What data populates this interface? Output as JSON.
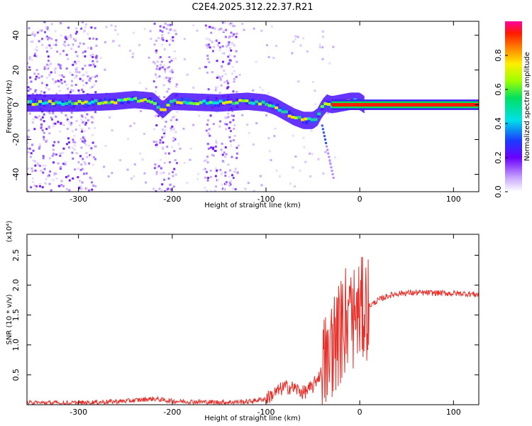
{
  "title": "C2E4.2025.312.22.37.R21",
  "chart_data": [
    {
      "type": "heatmap",
      "xlabel": "Height of straight line (km)",
      "ylabel": "Frequency (Hz)",
      "xlim": [
        -355,
        127
      ],
      "ylim": [
        -50,
        48
      ],
      "xticks": [
        -300,
        -200,
        -100,
        0,
        100
      ],
      "yticks": [
        -40,
        -20,
        0,
        20,
        40
      ],
      "colorbar": {
        "label": "Normalized spectral amplitude",
        "range": [
          0,
          1
        ],
        "ticks": [
          0.0,
          0.2,
          0.4,
          0.6,
          0.8
        ]
      },
      "peak_frequency_track": {
        "x": [
          -355,
          -300,
          -260,
          -240,
          -220,
          -210,
          -200,
          -150,
          -120,
          -100,
          -90,
          -80,
          -70,
          -60,
          -50,
          -45,
          -40,
          -35,
          -30,
          -20,
          -10,
          0,
          5,
          127
        ],
        "y": [
          1,
          1,
          2,
          3,
          2,
          -3,
          2,
          1,
          2,
          1,
          -1,
          -4,
          -7,
          -9,
          -9,
          -7,
          -2,
          1,
          0,
          1,
          2,
          2,
          0,
          0
        ]
      },
      "scatter_bands_x": [
        [
          -355,
          -280
        ],
        [
          -220,
          -195
        ],
        [
          -165,
          -130
        ]
      ]
    },
    {
      "type": "line",
      "xlabel": "Height of straight line (km)",
      "ylabel": "SNR (10 * v/v)",
      "scale_label": "(x10⁴)",
      "xlim": [
        -355,
        127
      ],
      "ylim": [
        0,
        2.85
      ],
      "xticks": [
        -300,
        -200,
        -100,
        0,
        100
      ],
      "yticks": [
        0.5,
        1.0,
        1.5,
        2.0,
        2.5
      ],
      "ytick_labels": [
        "0.5",
        "1.0",
        "1.5",
        "2.0",
        "2.5"
      ],
      "series": [
        {
          "color": "#e8302a",
          "x": [
            -355,
            -300,
            -250,
            -220,
            -200,
            -150,
            -120,
            -100,
            -90,
            -80,
            -70,
            -60,
            -50,
            -45,
            -40,
            -35,
            -30,
            -25,
            -20,
            -15,
            -10,
            -5,
            0,
            10,
            20,
            30,
            40,
            50,
            60,
            80,
            100,
            110,
            120,
            127
          ],
          "y": [
            0.03,
            0.03,
            0.06,
            0.1,
            0.06,
            0.04,
            0.05,
            0.1,
            0.2,
            0.3,
            0.28,
            0.2,
            0.3,
            0.45,
            0.55,
            0.75,
            0.95,
            1.15,
            1.2,
            1.3,
            1.4,
            1.5,
            1.55,
            1.65,
            1.75,
            1.82,
            1.86,
            1.87,
            1.87,
            1.87,
            1.86,
            1.86,
            1.85,
            1.84
          ]
        }
      ]
    }
  ]
}
